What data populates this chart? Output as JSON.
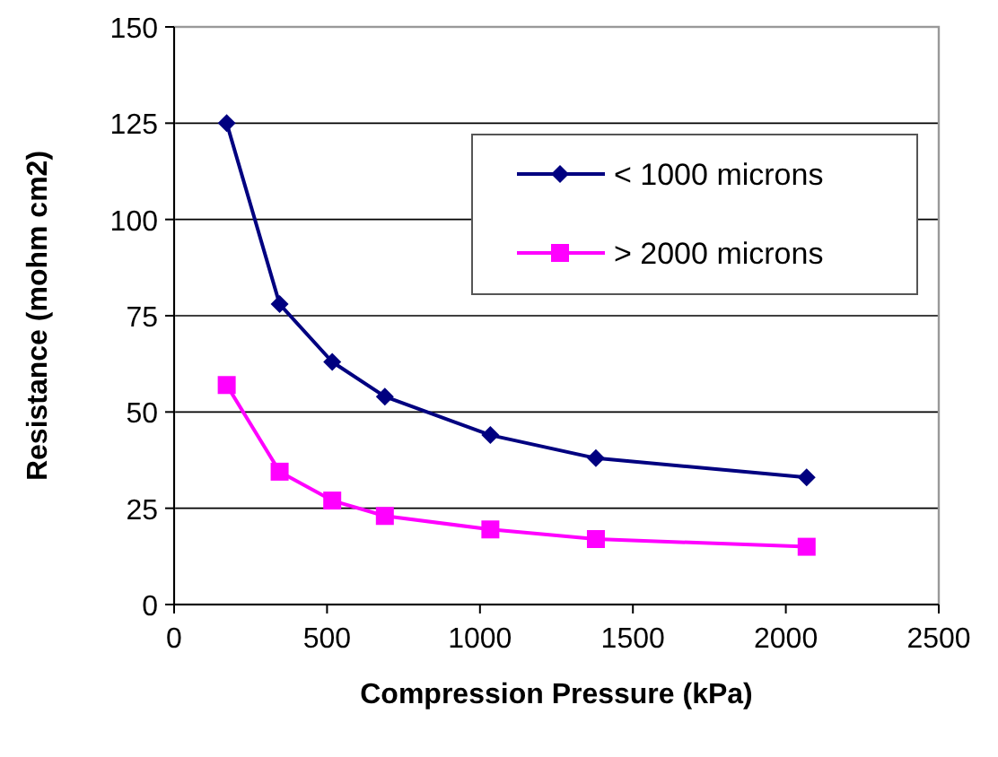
{
  "chart_data": {
    "type": "line",
    "xlabel": "Compression Pressure (kPa)",
    "ylabel": "Resistance (mohm cm2)",
    "xlim": [
      0,
      2500
    ],
    "xticks": [
      0,
      500,
      1000,
      1500,
      2000,
      2500
    ],
    "ylim": [
      0,
      150
    ],
    "yticks": [
      0,
      25,
      50,
      75,
      100,
      125,
      150
    ],
    "grid": "y",
    "legend": "top right",
    "series": [
      {
        "name": "< 1000 microns",
        "color": "#000080",
        "marker": "diamond",
        "x": [
          172,
          345,
          517,
          689,
          1034,
          1379,
          2068
        ],
        "values": [
          125,
          78,
          63,
          54,
          44,
          38,
          33
        ]
      },
      {
        "name": "> 2000 microns",
        "color": "#ff00ff",
        "marker": "square",
        "x": [
          172,
          345,
          517,
          689,
          1034,
          1379,
          2068
        ],
        "values": [
          57,
          34.5,
          27,
          23,
          19.5,
          17,
          15
        ]
      }
    ]
  }
}
